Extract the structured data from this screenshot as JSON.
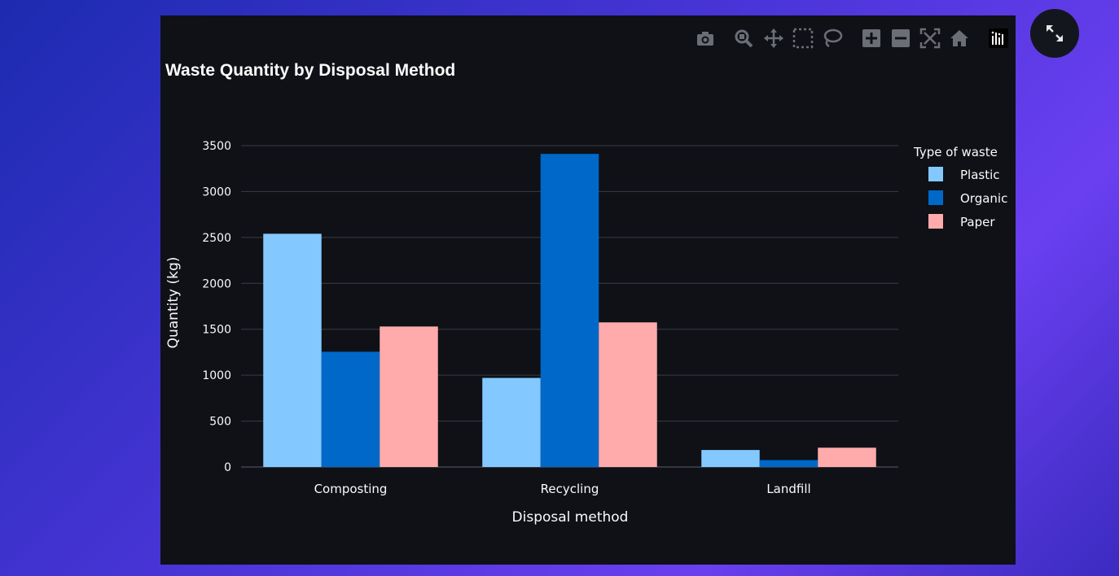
{
  "colors": {
    "plastic": "#83c9ff",
    "organic": "#0068c9",
    "paper": "#ffabab",
    "grid": "#3a3d46",
    "text": "#fafafa",
    "toolbar_icon": "#6b6e75"
  },
  "toolbar": {
    "icons": [
      "camera-icon",
      "zoom-icon",
      "pan-icon",
      "box-select-icon",
      "lasso-select-icon",
      "zoom-in-icon",
      "zoom-out-icon",
      "autoscale-icon",
      "reset-axes-icon",
      "plotly-logo-icon"
    ]
  },
  "chart_data": {
    "type": "bar",
    "barmode": "group",
    "title": "Waste Quantity by Disposal Method",
    "xlabel": "Disposal method",
    "ylabel": "Quantity (kg)",
    "ylim": [
      0,
      3600
    ],
    "yticks": [
      0,
      500,
      1000,
      1500,
      2000,
      2500,
      3000,
      3500
    ],
    "categories": [
      "Composting",
      "Recycling",
      "Landfill"
    ],
    "legend_title": "Type of waste",
    "legend_position": "right",
    "grid": true,
    "series": [
      {
        "name": "Plastic",
        "values": [
          2540,
          970,
          185
        ]
      },
      {
        "name": "Organic",
        "values": [
          1255,
          3410,
          75
        ]
      },
      {
        "name": "Paper",
        "values": [
          1530,
          1575,
          210
        ]
      }
    ]
  }
}
